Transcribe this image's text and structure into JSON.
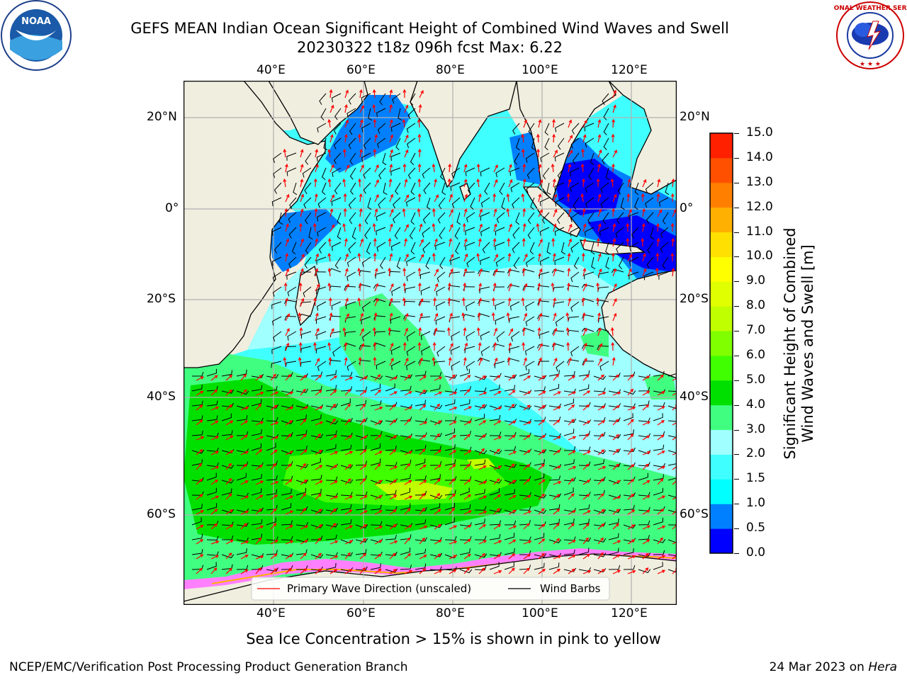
{
  "header": {
    "title_line1": "GEFS MEAN Indian Ocean Significant Height of Combined Wind Waves and Swell",
    "title_line2": "20230322 t18z 096h fcst   Max: 6.22"
  },
  "logos": {
    "left": {
      "name": "noaa-logo",
      "text": "NOAA"
    },
    "right": {
      "name": "nws-logo",
      "text": "NATIONAL WEATHER SERVICE"
    }
  },
  "map": {
    "lon_ticks_top": [
      "40°E",
      "60°E",
      "80°E",
      "100°E",
      "120°E"
    ],
    "lon_ticks_bottom": [
      "40°E",
      "60°E",
      "80°E",
      "100°E",
      "120°E"
    ],
    "lat_ticks_left": [
      "20°N",
      "0°",
      "20°S",
      "40°S",
      "60°S"
    ],
    "lat_ticks_right": [
      "20°N",
      "0°",
      "20°S",
      "40°S",
      "60°S"
    ],
    "legend": {
      "wave_label": "Primary Wave Direction (unscaled)",
      "barb_label": "Wind Barbs",
      "wave_color": "#ff0000",
      "barb_color": "#000000"
    },
    "land_color": "#efeedf"
  },
  "colorbar": {
    "label_line1": "Significant Height of Combined",
    "label_line2": "Wind Waves and Swell [m]",
    "ticks": [
      "15.0",
      "14.0",
      "13.0",
      "12.0",
      "11.0",
      "10.0",
      "9.0",
      "8.0",
      "7.0",
      "6.0",
      "5.0",
      "4.0",
      "3.0",
      "2.0",
      "1.5",
      "1.0",
      "0.5",
      "0.0"
    ],
    "colors": [
      "#0000ff",
      "#0080ff",
      "#00ffff",
      "#40ffff",
      "#a0ffff",
      "#40ff80",
      "#00e000",
      "#40ff00",
      "#80ff00",
      "#c0ff00",
      "#e0ff00",
      "#ffff00",
      "#ffe000",
      "#ffb000",
      "#ff8000",
      "#ff5000",
      "#ff2000",
      "#ff0000"
    ]
  },
  "caption": "Sea Ice Concentration > 15% is shown in pink to yellow",
  "footer": {
    "left": "NCEP/EMC/Verification Post Processing Product Generation Branch",
    "right_prefix": "24 Mar 2023 on ",
    "right_host": "Hera"
  }
}
